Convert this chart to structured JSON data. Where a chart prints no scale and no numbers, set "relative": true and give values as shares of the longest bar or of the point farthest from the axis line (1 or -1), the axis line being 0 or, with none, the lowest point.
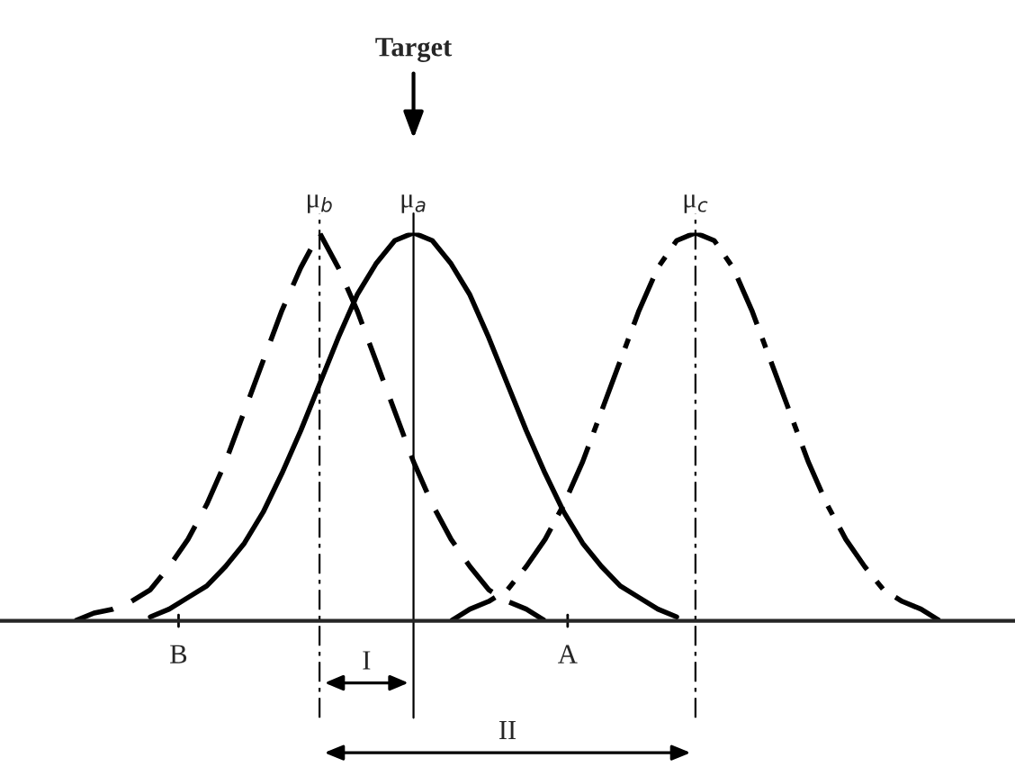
{
  "chart_data": {
    "type": "line",
    "relative": true,
    "categories": [
      null,
      null,
      null,
      null,
      null,
      null,
      null,
      null,
      null,
      null,
      null,
      null,
      null,
      null,
      null,
      null,
      null,
      null,
      null,
      null,
      null,
      null,
      null,
      null,
      null,
      null,
      null,
      null,
      null,
      null,
      null,
      null,
      null,
      null,
      null,
      null,
      null,
      null,
      null,
      null,
      null,
      null,
      null,
      null,
      null,
      null,
      null,
      null,
      null
    ],
    "series": [
      {
        "name": "μ$_{b}$",
        "color": "#000000",
        "line_style": "dashed",
        "values": [
          null,
          0.0,
          0.02,
          0.03,
          0.05,
          0.08,
          0.14,
          0.21,
          0.3,
          0.41,
          0.54,
          0.67,
          0.8,
          0.91,
          1.0,
          0.91,
          0.8,
          0.67,
          0.54,
          0.41,
          0.3,
          0.21,
          0.14,
          0.08,
          0.05,
          0.03,
          0.0,
          null,
          null,
          null,
          null,
          null,
          null,
          null,
          null,
          null,
          null,
          null,
          null,
          null,
          null,
          null,
          null,
          null,
          null,
          null,
          null,
          null,
          null
        ]
      },
      {
        "name": "μ$_{a}$",
        "color": "#000000",
        "line_style": "solid",
        "values": [
          null,
          null,
          null,
          null,
          null,
          0.01,
          0.03,
          0.06,
          0.09,
          0.14,
          0.2,
          0.28,
          0.38,
          0.49,
          0.61,
          0.73,
          0.84,
          0.92,
          0.98,
          1.0,
          0.98,
          0.92,
          0.84,
          0.73,
          0.61,
          0.49,
          0.38,
          0.28,
          0.2,
          0.14,
          0.09,
          0.06,
          0.03,
          0.01,
          null,
          null,
          null,
          null,
          null,
          null,
          null,
          null,
          null,
          null,
          null,
          null,
          null,
          null,
          null
        ]
      },
      {
        "name": "μ$_{c}$",
        "color": "#000000",
        "line_style": "dashdot",
        "values": [
          null,
          null,
          null,
          null,
          null,
          null,
          null,
          null,
          null,
          null,
          null,
          null,
          null,
          null,
          null,
          null,
          null,
          null,
          null,
          null,
          null,
          0.0,
          0.03,
          0.05,
          0.08,
          0.14,
          0.21,
          0.3,
          0.41,
          0.54,
          0.67,
          0.8,
          0.91,
          0.98,
          1.0,
          0.98,
          0.91,
          0.8,
          0.67,
          0.54,
          0.41,
          0.3,
          0.21,
          0.14,
          0.08,
          0.05,
          0.03,
          0.0,
          null
        ]
      }
    ],
    "annotations": [
      "Target",
      "B",
      "A",
      "I",
      "II"
    ],
    "grid": false,
    "legend": false
  }
}
